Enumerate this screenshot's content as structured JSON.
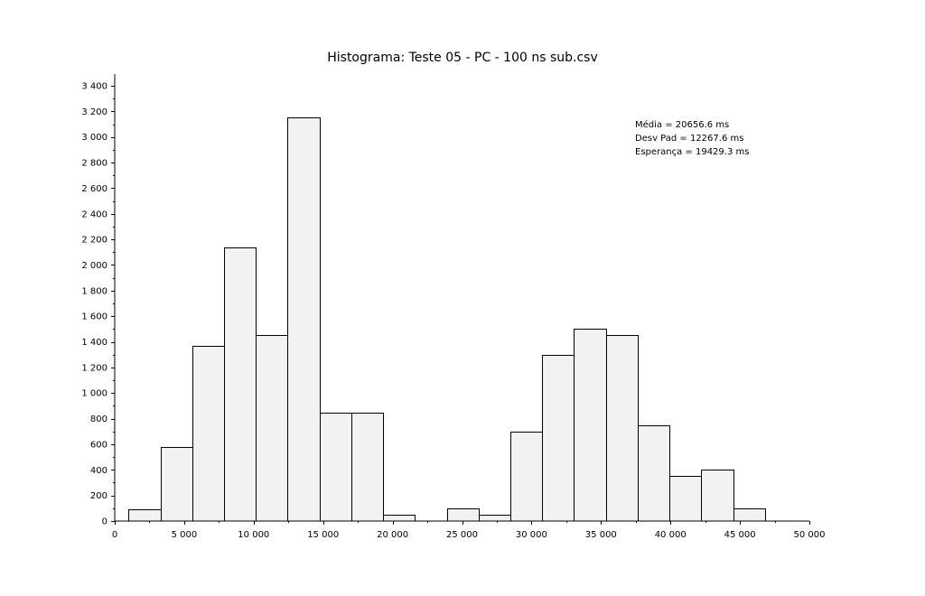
{
  "chart_data": {
    "type": "bar",
    "title": "Histograma: Teste 05 - PC - 100 ns sub.csv",
    "xlabel": "",
    "ylabel": "",
    "xlim": [
      0,
      50000
    ],
    "ylim": [
      0,
      3400
    ],
    "grid": false,
    "bar_color": "#f2f2f2",
    "edge_color": "#000000",
    "x_ticks": [
      {
        "value": 0,
        "label": "0"
      },
      {
        "value": 5000,
        "label": "5 000"
      },
      {
        "value": 10000,
        "label": "10 000"
      },
      {
        "value": 15000,
        "label": "15 000"
      },
      {
        "value": 20000,
        "label": "20 000"
      },
      {
        "value": 25000,
        "label": "25 000"
      },
      {
        "value": 30000,
        "label": "30 000"
      },
      {
        "value": 35000,
        "label": "35 000"
      },
      {
        "value": 40000,
        "label": "40 000"
      },
      {
        "value": 45000,
        "label": "45 000"
      },
      {
        "value": 50000,
        "label": "50 000"
      }
    ],
    "y_ticks": [
      {
        "value": 0,
        "label": "0"
      },
      {
        "value": 200,
        "label": "200"
      },
      {
        "value": 400,
        "label": "400"
      },
      {
        "value": 600,
        "label": "600"
      },
      {
        "value": 800,
        "label": "800"
      },
      {
        "value": 1000,
        "label": "1 000"
      },
      {
        "value": 1200,
        "label": "1 200"
      },
      {
        "value": 1400,
        "label": "1 400"
      },
      {
        "value": 1600,
        "label": "1 600"
      },
      {
        "value": 1800,
        "label": "1 800"
      },
      {
        "value": 2000,
        "label": "2 000"
      },
      {
        "value": 2200,
        "label": "2 200"
      },
      {
        "value": 2400,
        "label": "2 400"
      },
      {
        "value": 2600,
        "label": "2 600"
      },
      {
        "value": 2800,
        "label": "2 800"
      },
      {
        "value": 3000,
        "label": "3 000"
      },
      {
        "value": 3200,
        "label": "3 200"
      },
      {
        "value": 3400,
        "label": "3 400"
      }
    ],
    "bins": [
      {
        "x0": 1000,
        "x1": 3290,
        "value": 90
      },
      {
        "x0": 3290,
        "x1": 5580,
        "value": 580
      },
      {
        "x0": 5580,
        "x1": 7870,
        "value": 1370
      },
      {
        "x0": 7870,
        "x1": 10160,
        "value": 2140
      },
      {
        "x0": 10160,
        "x1": 12450,
        "value": 1450
      },
      {
        "x0": 12450,
        "x1": 14740,
        "value": 3150
      },
      {
        "x0": 14740,
        "x1": 17030,
        "value": 850
      },
      {
        "x0": 17030,
        "x1": 19320,
        "value": 850
      },
      {
        "x0": 19320,
        "x1": 21610,
        "value": 50
      },
      {
        "x0": 21610,
        "x1": 23900,
        "value": 0
      },
      {
        "x0": 23900,
        "x1": 26190,
        "value": 100
      },
      {
        "x0": 26190,
        "x1": 28480,
        "value": 50
      },
      {
        "x0": 28480,
        "x1": 30770,
        "value": 700
      },
      {
        "x0": 30770,
        "x1": 33060,
        "value": 1300
      },
      {
        "x0": 33060,
        "x1": 35350,
        "value": 1500
      },
      {
        "x0": 35350,
        "x1": 37640,
        "value": 1450
      },
      {
        "x0": 37640,
        "x1": 39930,
        "value": 750
      },
      {
        "x0": 39930,
        "x1": 42220,
        "value": 350
      },
      {
        "x0": 42220,
        "x1": 44510,
        "value": 400
      },
      {
        "x0": 44510,
        "x1": 46800,
        "value": 100
      }
    ],
    "annotations": [
      "Média = 20656.6 ms",
      "Desv Pad = 12267.6 ms",
      "Esperança = 19429.3 ms"
    ]
  }
}
